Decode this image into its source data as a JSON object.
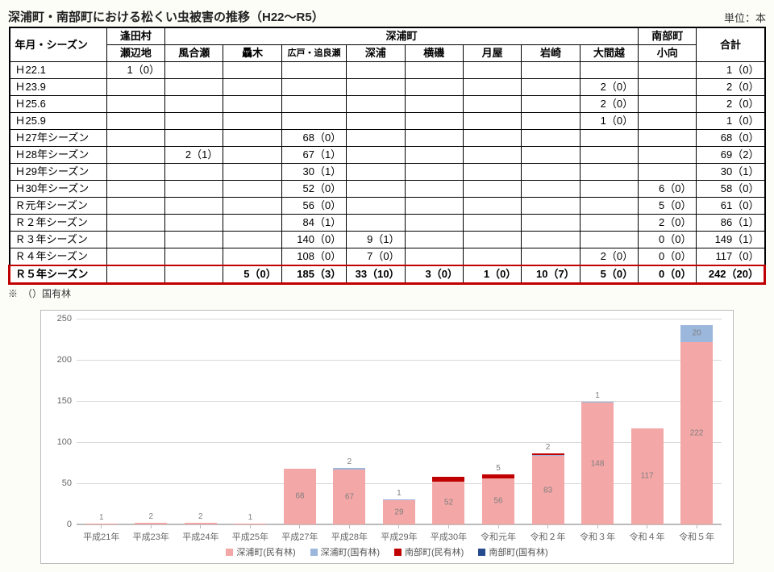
{
  "title": "深浦町・南部町における松くい虫被害の推移（H22～R5）",
  "unit_label": "単位：本",
  "footnote": "※　（）国有林",
  "columns": {
    "season": "年月・シーズン",
    "group_onita": "逢田村",
    "onita_sub": "瀬辺地",
    "group_fukaura": "深浦町",
    "fukaura_subs": [
      "風合瀬",
      "驫木",
      "広戸・追良瀬",
      "深浦",
      "横磯",
      "月屋",
      "岩崎",
      "大間越"
    ],
    "group_nanbu": "南部町",
    "nanbu_sub": "小向",
    "total": "合計"
  },
  "rows": [
    {
      "season": "Ｈ22.1",
      "onita": "1（0）",
      "f": [
        "",
        "",
        "",
        "",
        "",
        "",
        "",
        ""
      ],
      "nanbu": "",
      "total": "1（0）"
    },
    {
      "season": "Ｈ23.9",
      "onita": "",
      "f": [
        "",
        "",
        "",
        "",
        "",
        "",
        "",
        "2（0）"
      ],
      "nanbu": "",
      "total": "2（0）"
    },
    {
      "season": "Ｈ25.6",
      "onita": "",
      "f": [
        "",
        "",
        "",
        "",
        "",
        "",
        "",
        "2（0）"
      ],
      "nanbu": "",
      "total": "2（0）"
    },
    {
      "season": "Ｈ25.9",
      "onita": "",
      "f": [
        "",
        "",
        "",
        "",
        "",
        "",
        "",
        "1（0）"
      ],
      "nanbu": "",
      "total": "1（0）"
    },
    {
      "season": "Ｈ27年シーズン",
      "onita": "",
      "f": [
        "",
        "",
        "68（0）",
        "",
        "",
        "",
        "",
        ""
      ],
      "nanbu": "",
      "total": "68（0）"
    },
    {
      "season": "Ｈ28年シーズン",
      "onita": "",
      "f": [
        "2（1）",
        "",
        "67（1）",
        "",
        "",
        "",
        "",
        ""
      ],
      "nanbu": "",
      "total": "69（2）"
    },
    {
      "season": "Ｈ29年シーズン",
      "onita": "",
      "f": [
        "",
        "",
        "30（1）",
        "",
        "",
        "",
        "",
        ""
      ],
      "nanbu": "",
      "total": "30（1）"
    },
    {
      "season": "Ｈ30年シーズン",
      "onita": "",
      "f": [
        "",
        "",
        "52（0）",
        "",
        "",
        "",
        "",
        ""
      ],
      "nanbu": "6（0）",
      "total": "58（0）"
    },
    {
      "season": "Ｒ元年シーズン",
      "onita": "",
      "f": [
        "",
        "",
        "56（0）",
        "",
        "",
        "",
        "",
        ""
      ],
      "nanbu": "5（0）",
      "total": "61（0）"
    },
    {
      "season": "Ｒ２年シーズン",
      "onita": "",
      "f": [
        "",
        "",
        "84（1）",
        "",
        "",
        "",
        "",
        ""
      ],
      "nanbu": "2（0）",
      "total": "86（1）"
    },
    {
      "season": "Ｒ３年シーズン",
      "onita": "",
      "f": [
        "",
        "",
        "140（0）",
        "9（1）",
        "",
        "",
        "",
        ""
      ],
      "nanbu": "0（0）",
      "total": "149（1）"
    },
    {
      "season": "Ｒ４年シーズン",
      "onita": "",
      "f": [
        "",
        "",
        "108（0）",
        "7（0）",
        "",
        "",
        "",
        "2（0）"
      ],
      "nanbu": "0（0）",
      "total": "117（0）"
    },
    {
      "season": "Ｒ５年シーズン",
      "onita": "",
      "f": [
        "",
        "5（0）",
        "185（3）",
        "33（10）",
        "3（0）",
        "1（0）",
        "10（7）",
        "5（0）"
      ],
      "nanbu": "0（0）",
      "total": "242（20）",
      "highlight": true
    }
  ],
  "chart": {
    "y_max": 250,
    "y_step": 50,
    "y_ticks": [
      0,
      50,
      100,
      150,
      200,
      250
    ],
    "x_labels": [
      "平成21年",
      "平成23年",
      "平成24年",
      "平成25年",
      "平成27年",
      "平成28年",
      "平成29年",
      "平成30年",
      "令和元年",
      "令和２年",
      "令和３年",
      "令和４年",
      "令和５年"
    ],
    "series_colors": {
      "fukaura_min": "#f4a7a7",
      "fukaura_koku": "#9cb7dc",
      "nanbu_min": "#c00000",
      "nanbu_koku": "#254a8e"
    },
    "legend": [
      {
        "label": "深浦町(民有林)",
        "color": "#f4a7a7"
      },
      {
        "label": "深浦町(国有林)",
        "color": "#9cb7dc"
      },
      {
        "label": "南部町(民有林)",
        "color": "#c00000"
      },
      {
        "label": "南部町(国有林)",
        "color": "#254a8e"
      }
    ],
    "bars": [
      {
        "segs": [
          {
            "v": 1,
            "c": "fukaura_min",
            "lbl": "1",
            "pos": "above"
          }
        ]
      },
      {
        "segs": [
          {
            "v": 2,
            "c": "fukaura_min",
            "lbl": "2",
            "pos": "above"
          }
        ]
      },
      {
        "segs": [
          {
            "v": 2,
            "c": "fukaura_min",
            "lbl": "2",
            "pos": "above"
          }
        ]
      },
      {
        "segs": [
          {
            "v": 1,
            "c": "fukaura_min",
            "lbl": "1",
            "pos": "above"
          }
        ]
      },
      {
        "segs": [
          {
            "v": 68,
            "c": "fukaura_min",
            "lbl": "68",
            "pos": "inside"
          }
        ]
      },
      {
        "segs": [
          {
            "v": 67,
            "c": "fukaura_min",
            "lbl": "67",
            "pos": "inside"
          },
          {
            "v": 2,
            "c": "fukaura_koku",
            "lbl": "2",
            "pos": "above"
          }
        ]
      },
      {
        "segs": [
          {
            "v": 29,
            "c": "fukaura_min",
            "lbl": "29",
            "pos": "inside"
          },
          {
            "v": 1,
            "c": "fukaura_koku",
            "lbl": "1",
            "pos": "above"
          }
        ]
      },
      {
        "segs": [
          {
            "v": 52,
            "c": "fukaura_min",
            "lbl": "52",
            "pos": "inside"
          },
          {
            "v": 6,
            "c": "nanbu_min",
            "lbl": "",
            "pos": "above"
          }
        ]
      },
      {
        "segs": [
          {
            "v": 56,
            "c": "fukaura_min",
            "lbl": "56",
            "pos": "inside"
          },
          {
            "v": 5,
            "c": "nanbu_min",
            "lbl": "5",
            "pos": "above"
          }
        ]
      },
      {
        "segs": [
          {
            "v": 83,
            "c": "fukaura_min",
            "lbl": "83",
            "pos": "inside"
          },
          {
            "v": 1,
            "c": "fukaura_koku"
          },
          {
            "v": 2,
            "c": "nanbu_min",
            "lbl": "2",
            "pos": "above"
          }
        ]
      },
      {
        "segs": [
          {
            "v": 148,
            "c": "fukaura_min",
            "lbl": "148",
            "pos": "inside"
          },
          {
            "v": 1,
            "c": "fukaura_koku",
            "lbl": "1",
            "pos": "above"
          }
        ]
      },
      {
        "segs": [
          {
            "v": 117,
            "c": "fukaura_min",
            "lbl": "117",
            "pos": "inside"
          }
        ]
      },
      {
        "segs": [
          {
            "v": 222,
            "c": "fukaura_min",
            "lbl": "222",
            "pos": "inside"
          },
          {
            "v": 20,
            "c": "fukaura_koku",
            "lbl": "20",
            "pos": "inside"
          }
        ]
      }
    ]
  }
}
